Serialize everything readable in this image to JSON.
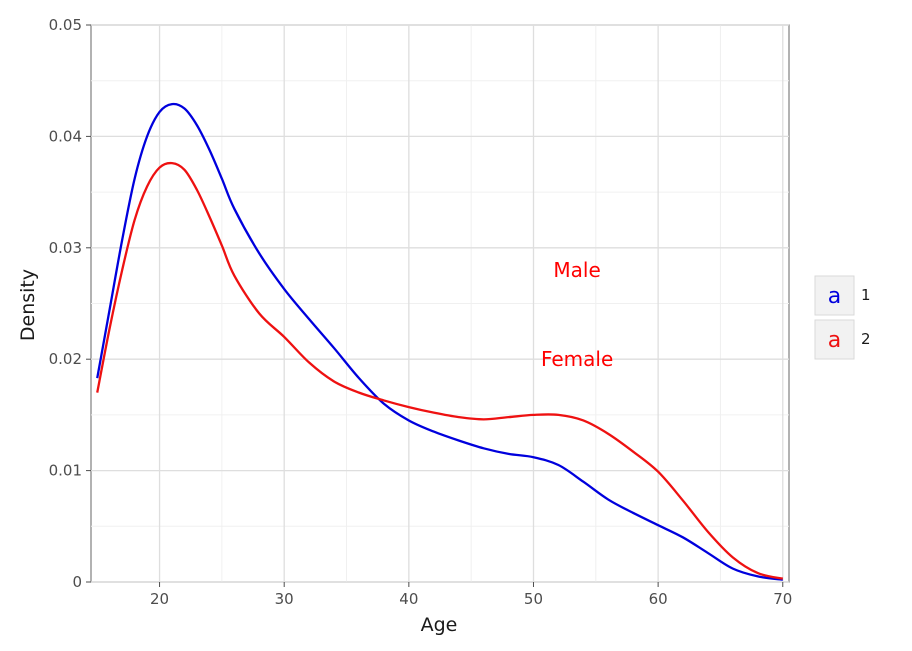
{
  "chart_data": {
    "type": "line",
    "xlabel": "Age",
    "ylabel": "Density",
    "xlim": [
      14.5,
      70.5
    ],
    "ylim": [
      0,
      0.05
    ],
    "x_ticks": [
      20,
      30,
      40,
      50,
      60,
      70
    ],
    "x_tick_labels": [
      "20",
      "30",
      "40",
      "50",
      "60",
      "70"
    ],
    "y_ticks": [
      0,
      0.01,
      0.02,
      0.03,
      0.04,
      0.05
    ],
    "y_tick_labels": [
      "0",
      "0.01",
      "0.02",
      "0.03",
      "0.04",
      "0.05"
    ],
    "grid": true,
    "legend_position": "right",
    "series": [
      {
        "name": "1",
        "color": "#0000dd",
        "x": [
          15,
          16,
          17,
          18,
          19,
          20,
          21,
          22,
          23,
          24,
          25,
          26,
          28,
          30,
          32,
          34,
          36,
          38,
          40,
          42,
          44,
          46,
          48,
          50,
          52,
          54,
          56,
          58,
          60,
          62,
          64,
          66,
          68,
          70
        ],
        "y": [
          0.0183,
          0.0245,
          0.0307,
          0.0362,
          0.04,
          0.0422,
          0.0429,
          0.0425,
          0.041,
          0.0388,
          0.0362,
          0.0335,
          0.0295,
          0.0263,
          0.0236,
          0.021,
          0.0183,
          0.016,
          0.0145,
          0.0135,
          0.0127,
          0.012,
          0.0115,
          0.0112,
          0.0105,
          0.009,
          0.0074,
          0.0062,
          0.0051,
          0.004,
          0.0026,
          0.0012,
          0.0005,
          0.0002
        ]
      },
      {
        "name": "2",
        "color": "#ee1111",
        "x": [
          15,
          16,
          17,
          18,
          19,
          20,
          21,
          22,
          23,
          24,
          25,
          26,
          28,
          30,
          32,
          34,
          36,
          38,
          40,
          42,
          44,
          46,
          48,
          50,
          52,
          54,
          56,
          58,
          60,
          62,
          64,
          66,
          68,
          70
        ],
        "y": [
          0.017,
          0.0228,
          0.028,
          0.0325,
          0.0355,
          0.0372,
          0.0376,
          0.037,
          0.0352,
          0.0328,
          0.0302,
          0.0275,
          0.0241,
          0.022,
          0.0197,
          0.018,
          0.017,
          0.0163,
          0.0157,
          0.0152,
          0.0148,
          0.0146,
          0.0148,
          0.015,
          0.015,
          0.0145,
          0.0133,
          0.0117,
          0.0099,
          0.0073,
          0.0045,
          0.0022,
          0.0008,
          0.0003
        ]
      }
    ],
    "legend": {
      "key_glyph": "a",
      "entries": [
        {
          "key": "a",
          "label": "1",
          "color": "#0000dd"
        },
        {
          "key": "a",
          "label": "2",
          "color": "#ee1111"
        }
      ]
    },
    "annotations": [
      {
        "text": "Male",
        "x": 53.5,
        "y": 0.028,
        "color": "#ff0000"
      },
      {
        "text": "Female",
        "x": 53.5,
        "y": 0.02,
        "color": "#ff0000"
      }
    ]
  }
}
